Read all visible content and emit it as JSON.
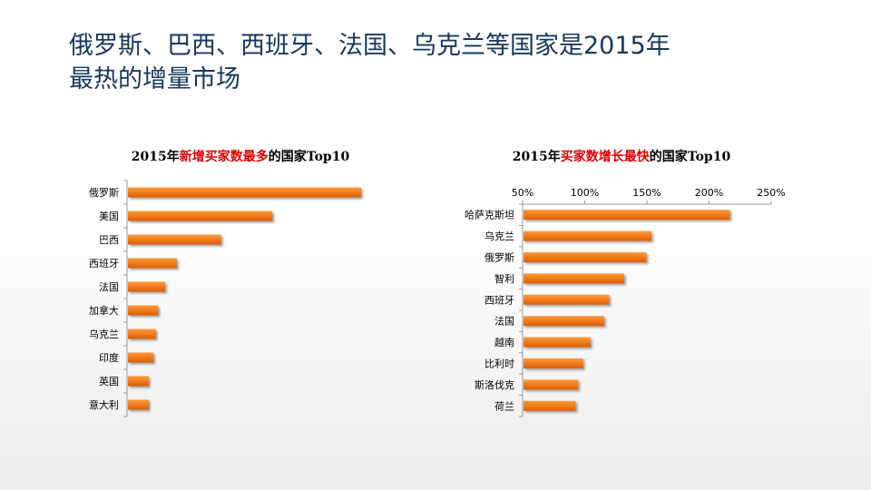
{
  "slide": {
    "title_line1": "俄罗斯、巴西、西班牙、法国、乌克兰等国家是2015年",
    "title_line2": "最热的增量市场"
  },
  "colors": {
    "title": "#17375e",
    "bar": "#f07818",
    "highlight": "#e00000",
    "axis": "#999999"
  },
  "chart_data": [
    {
      "type": "bar",
      "orientation": "horizontal",
      "title": {
        "prefix": "2015年",
        "highlight": "新增买家数最多",
        "suffix": "的国家Top10"
      },
      "categories": [
        "俄罗斯",
        "美国",
        "巴西",
        "西班牙",
        "法国",
        "加拿大",
        "乌克兰",
        "印度",
        "英国",
        "意大利"
      ],
      "values": [
        100,
        62,
        40,
        21,
        16,
        13,
        12,
        11,
        9,
        9
      ],
      "value_axis_visible": false,
      "xlim": [
        0,
        100
      ]
    },
    {
      "type": "bar",
      "orientation": "horizontal",
      "title": {
        "prefix": "2015年",
        "highlight": "买家数增长最快",
        "suffix": "的国家Top10"
      },
      "categories": [
        "哈萨克斯坦",
        "乌克兰",
        "俄罗斯",
        "智利",
        "西班牙",
        "法国",
        "越南",
        "比利时",
        "斯洛伐克",
        "荷兰"
      ],
      "values": [
        216,
        153,
        149,
        131,
        119,
        115,
        104,
        98,
        94,
        92
      ],
      "xlim": [
        50,
        250
      ],
      "xticks": [
        50,
        100,
        150,
        200,
        250
      ],
      "xtick_labels": [
        "50%",
        "100%",
        "150%",
        "200%",
        "250%"
      ],
      "axis_position": "top"
    }
  ]
}
